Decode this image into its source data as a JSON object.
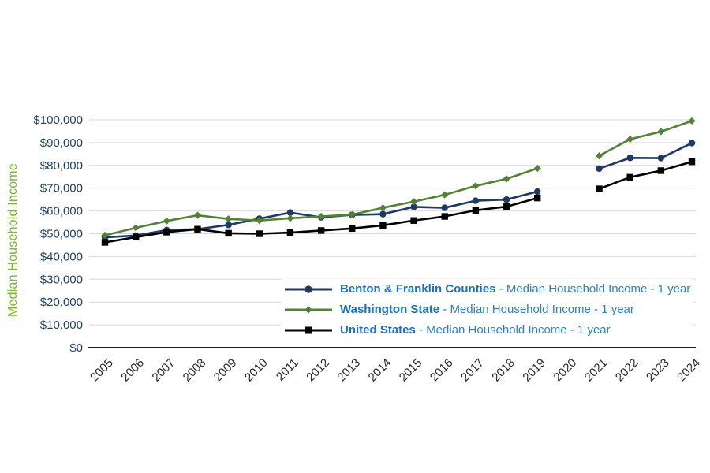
{
  "chart_data": {
    "type": "line",
    "title": "",
    "ylabel": "Median Household Income",
    "xlabel": "",
    "ylim": [
      0,
      100000
    ],
    "ytick_step": 10000,
    "ytick_prefix": "$",
    "grid": "horizontal",
    "legend_position": "inside-bottom-right",
    "x": [
      "2005",
      "2006",
      "2007",
      "2008",
      "2009",
      "2010",
      "2011",
      "2012",
      "2013",
      "2014",
      "2015",
      "2016",
      "2017",
      "2018",
      "2019",
      "2020",
      "2021",
      "2022",
      "2023",
      "2024"
    ],
    "series": [
      {
        "name": "Benton & Franklin Counties",
        "legend_suffix": " - Median Household Income - 1 year",
        "color": "#1f3864",
        "marker": "circle",
        "values": [
          48400,
          49200,
          51600,
          52000,
          53900,
          56600,
          59300,
          57200,
          58300,
          58600,
          61800,
          61400,
          64500,
          65000,
          68500,
          null,
          78600,
          83300,
          83200,
          89800
        ]
      },
      {
        "name": "Washington State",
        "legend_suffix": " - Median Household Income - 1 year",
        "color": "#538135",
        "marker": "diamond",
        "values": [
          49300,
          52600,
          55600,
          58100,
          56500,
          55800,
          56800,
          57600,
          58400,
          61400,
          64100,
          67100,
          71000,
          74100,
          78700,
          null,
          84200,
          91500,
          94800,
          99500
        ]
      },
      {
        "name": "United States",
        "legend_suffix": " - Median Household Income - 1 year",
        "color": "#000000",
        "marker": "square",
        "values": [
          46200,
          48500,
          50700,
          52000,
          50200,
          50000,
          50500,
          51400,
          52300,
          53700,
          55800,
          57600,
          60300,
          61900,
          65700,
          null,
          69700,
          74800,
          77700,
          81600
        ]
      }
    ],
    "colors": {
      "y_axis_title": "#76b82a",
      "y_tick_label": "#1f3f66",
      "x_tick_label": "#262626",
      "gridline": "#d9d9d9",
      "axis_line": "#1a1a1a",
      "legend_name": "#1b6ec2",
      "legend_suffix": "#2e7ec9",
      "background": "#ffffff"
    }
  }
}
